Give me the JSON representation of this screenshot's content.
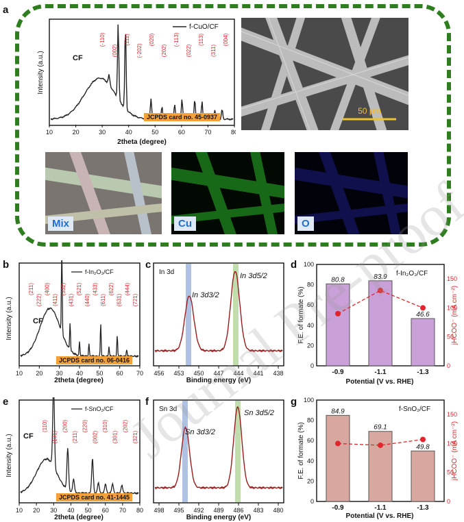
{
  "panels": {
    "a": "a",
    "b": "b",
    "c": "c",
    "d": "d",
    "e": "e",
    "f": "f",
    "g": "g"
  },
  "xrd_a": {
    "legend": "f-CuO/CF",
    "ylabel": "Intensity (a.u.)",
    "xlabel": "2theta (degree)",
    "ticks": [
      "10",
      "20",
      "30",
      "40",
      "50",
      "60",
      "70",
      "80"
    ],
    "cf_label": "CF",
    "card": "JCPDS card no. 45-0937",
    "peaks": [
      "(-110)",
      "(002)",
      "(111)",
      "(-202)",
      "(020)",
      "(202)",
      "(-113)",
      "(022)",
      "(113)",
      "(311)",
      "(004)"
    ]
  },
  "sem": {
    "scale": "50 μm"
  },
  "maps": {
    "mix": "Mix",
    "cu": "Cu",
    "o": "O"
  },
  "xrd_b": {
    "legend": "f-In₂O₃/CF",
    "ylabel": "Intensity (a.u.)",
    "xlabel": "2theta (degree)",
    "ticks": [
      "10",
      "20",
      "30",
      "40",
      "50",
      "60",
      "70"
    ],
    "cf_label": "CF",
    "card": "JCPDS card no. 06-0416",
    "peaks": [
      "(211)",
      "(222)",
      "(400)",
      "(411)",
      "(332)",
      "(431)",
      "(521)",
      "(440)",
      "(433)",
      "(611)",
      "(622)",
      "(631)",
      "(444)",
      "(721)"
    ]
  },
  "xps_c": {
    "title": "In 3d",
    "xlabel": "Binding energy (eV)",
    "ticks": [
      "456",
      "453",
      "450",
      "447",
      "444",
      "441",
      "438"
    ],
    "peak1": "In 3d3/2",
    "peak2": "In 3d5/2"
  },
  "bar_d": {
    "legend": "f-In₂O₃/CF",
    "ylabel": "F.E. of formate (%)",
    "ylabel2": "jHCOO⁻ (mA cm⁻²)",
    "xlabel": "Potential (V vs. RHE)",
    "yticks": [
      "0",
      "20",
      "40",
      "60",
      "80",
      "100"
    ],
    "y2ticks": [
      "0",
      "50",
      "100",
      "150"
    ]
  },
  "xrd_e": {
    "legend": "f-SnO₂/CF",
    "ylabel": "Intensity (a.u.)",
    "xlabel": "2theta (degree)",
    "ticks": [
      "10",
      "20",
      "30",
      "40",
      "50",
      "60",
      "70",
      "80"
    ],
    "cf_label": "CF",
    "card": "JCPDS card no. 41-1445",
    "peaks": [
      "(110)",
      "(101)",
      "(200)",
      "(211)",
      "(220)",
      "(002)",
      "(310)",
      "(301)",
      "(202)",
      "(321)"
    ]
  },
  "xps_f": {
    "title": "Sn 3d",
    "xlabel": "Binding energy (eV)",
    "ticks": [
      "498",
      "495",
      "492",
      "489",
      "486",
      "483",
      "480"
    ],
    "peak1": "Sn 3d3/2",
    "peak2": "Sn 3d5/2"
  },
  "bar_g": {
    "legend": "f-SnO₂/CF",
    "ylabel": "F.E. of formate (%)",
    "ylabel2": "jHCOO⁻ (mA cm⁻²)",
    "xlabel": "Potential (V vs. RHE)",
    "yticks": [
      "0",
      "20",
      "40",
      "60",
      "80",
      "100"
    ],
    "y2ticks": [
      "0",
      "50",
      "100",
      "150"
    ]
  },
  "chart_data": [
    {
      "type": "bar",
      "title": "f-In₂O₃/CF",
      "categories": [
        "-0.9",
        "-1.1",
        "-1.3"
      ],
      "series": [
        {
          "name": "F.E. of formate (%)",
          "values": [
            80.8,
            83.9,
            46.6
          ],
          "color": "#c9a0d8"
        },
        {
          "name": "jHCOO⁻ (mA cm⁻²)",
          "values": [
            90,
            130,
            100
          ],
          "color": "#e0252b"
        }
      ],
      "data_labels": [
        "80.8",
        "83.9",
        "46.6"
      ],
      "ylim": [
        0,
        100
      ],
      "y2lim": [
        0,
        175
      ]
    },
    {
      "type": "bar",
      "title": "f-SnO₂/CF",
      "categories": [
        "-0.9",
        "-1.1",
        "-1.3"
      ],
      "series": [
        {
          "name": "F.E. of formate (%)",
          "values": [
            84.9,
            69.1,
            49.8
          ],
          "color": "#d8a8a0"
        },
        {
          "name": "jHCOO⁻ (mA cm⁻²)",
          "values": [
            100,
            97,
            107
          ],
          "color": "#e0252b"
        }
      ],
      "data_labels": [
        "84.9",
        "69.1",
        "49.8"
      ],
      "ylim": [
        0,
        100
      ],
      "y2lim": [
        0,
        175
      ]
    }
  ],
  "watermark": "Journal Pre-proof"
}
